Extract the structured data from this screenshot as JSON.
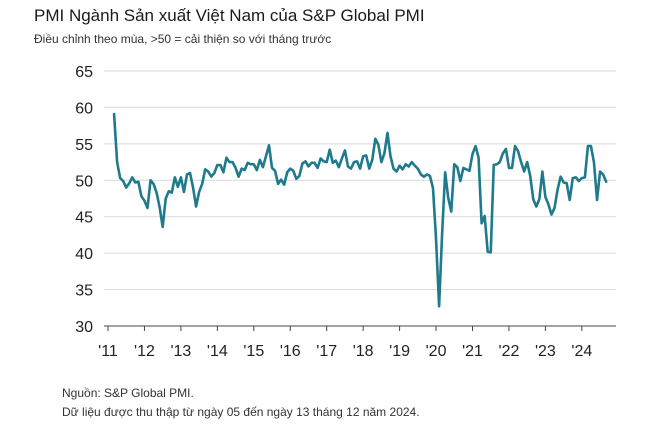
{
  "title": "PMI Ngành Sản xuất Việt Nam của S&P Global PMI",
  "subtitle": "Điều chỉnh theo mùa, >50 = cải thiện so với tháng trước",
  "footer": {
    "source": "Nguồn: S&P Global PMI.",
    "note": "Dữ liệu được thu thập từ ngày 05 đến ngày 13 tháng 12 năm 2024."
  },
  "colors": {
    "line": "#1f7a8c",
    "grid": "#d9d9d9",
    "axis": "#444444"
  },
  "chart_data": {
    "type": "line",
    "title": "PMI Ngành Sản xuất Việt Nam của S&P Global PMI",
    "xlabel": "",
    "ylabel": "",
    "ylim": [
      30,
      65
    ],
    "yticks": [
      30,
      35,
      40,
      45,
      50,
      55,
      60,
      65
    ],
    "xticks": [
      "'11",
      "'12",
      "'13",
      "'14",
      "'15",
      "'16",
      "'17",
      "'18",
      "'19",
      "'20",
      "'21",
      "'22",
      "'23",
      "'24"
    ],
    "grid": "horizontal",
    "legend": "none",
    "x_start": "2011-03",
    "x_end": "2024-11",
    "series": [
      {
        "values": [
          59.1,
          52.5,
          50.3,
          49.9,
          49.0,
          49.6,
          50.4,
          49.7,
          49.8,
          47.8,
          47.2,
          46.2,
          50.0,
          49.5,
          48.3,
          46.3,
          43.6,
          47.5,
          48.5,
          48.3,
          50.4,
          49.1,
          50.4,
          48.4,
          50.8,
          51.0,
          49.0,
          46.4,
          48.4,
          49.5,
          51.5,
          51.2,
          50.5,
          51.0,
          52.1,
          52.1,
          51.1,
          53.1,
          52.5,
          52.5,
          51.7,
          50.5,
          51.6,
          51.4,
          52.4,
          52.2,
          52.2,
          51.4,
          52.8,
          51.8,
          53.3,
          54.8,
          51.7,
          51.3,
          49.5,
          50.1,
          49.4,
          51.1,
          51.6,
          51.3,
          50.2,
          50.6,
          52.3,
          52.6,
          51.9,
          52.4,
          52.4,
          51.7,
          53.0,
          52.6,
          52.5,
          54.2,
          52.4,
          52.7,
          51.8,
          53.0,
          54.1,
          51.9,
          51.6,
          52.5,
          52.6,
          51.6,
          53.3,
          53.4,
          51.6,
          52.8,
          55.7,
          54.9,
          52.5,
          53.7,
          56.5,
          53.3,
          51.6,
          51.2,
          52.0,
          51.5,
          52.2,
          51.9,
          52.5,
          52.0,
          51.6,
          50.8,
          50.5,
          50.8,
          50.6,
          48.9,
          41.9,
          32.7,
          42.7,
          51.1,
          47.6,
          45.7,
          52.2,
          51.8,
          49.9,
          51.7,
          51.5,
          51.3,
          53.6,
          54.7,
          53.1,
          44.1,
          45.1,
          40.2,
          40.1,
          52.1,
          52.2,
          52.5,
          53.7,
          54.3,
          51.7,
          51.7,
          54.7,
          54.0,
          52.5,
          51.2,
          52.5,
          50.6,
          47.4,
          46.4,
          47.4,
          51.2,
          47.7,
          46.7,
          45.3,
          46.2,
          48.7,
          50.5,
          49.7,
          49.6,
          47.3,
          50.3,
          50.4,
          49.9,
          50.3,
          50.4,
          54.7,
          54.7,
          52.4,
          47.3,
          51.2,
          50.8,
          49.8
        ]
      }
    ]
  }
}
